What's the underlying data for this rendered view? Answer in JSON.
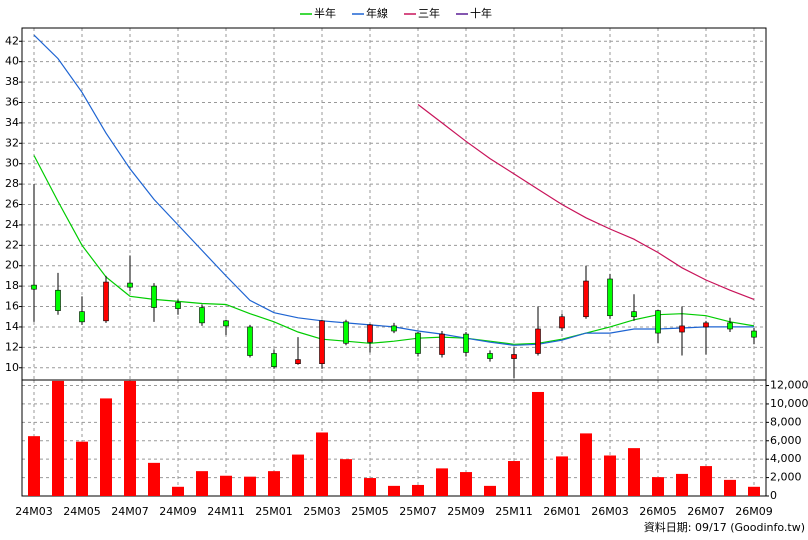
{
  "chart_data": [
    {
      "type": "candlestick",
      "open": [
        18.1,
        17.6,
        15.5,
        14.6,
        18.3,
        18.0,
        16.4,
        15.9,
        14.6,
        14.0,
        11.4,
        10.4,
        10.4,
        14.5,
        12.5,
        14.1,
        13.4,
        11.3,
        13.3,
        11.4,
        10.9,
        11.4,
        13.9,
        15.0,
        18.7,
        15.5,
        15.6,
        13.5,
        14.0,
        14.4,
        13.6
      ],
      "high": [
        28,
        19.3,
        17,
        19,
        21,
        18.3,
        16.7,
        16.2,
        14.7,
        14.2,
        11.8,
        13,
        14.7,
        14.7,
        14.3,
        14.4,
        13.5,
        13.6,
        13.5,
        11.7,
        12,
        16,
        15.3,
        20,
        19.2,
        17.2,
        15.7,
        16,
        14.6,
        14.9,
        13.9
      ],
      "low": [
        14.5,
        15.2,
        14.2,
        14.4,
        17.5,
        14.5,
        15.2,
        14.1,
        13.2,
        11.0,
        9.9,
        10.3,
        9.9,
        12.2,
        11.5,
        13.4,
        11.1,
        11.0,
        11.1,
        10.6,
        9.0,
        11.2,
        13.6,
        14.8,
        14.8,
        14.6,
        12.4,
        11.2,
        11.3,
        13.5,
        12.3
      ],
      "close": [
        17.7,
        15.6,
        14.5,
        18.4,
        17.9,
        15.9,
        15.8,
        14.4,
        14.1,
        11.2,
        10.1,
        10.8,
        14.6,
        12.4,
        14.2,
        13.6,
        11.4,
        13.3,
        11.5,
        10.9,
        11.3,
        13.8,
        15.0,
        18.5,
        15.1,
        15.0,
        13.4,
        14.1,
        14.4,
        13.8,
        13.0
      ],
      "up_color": "#ff0000",
      "down_color": "#00ff00",
      "series": [
        {
          "name": "半年",
          "color": "#00cc00",
          "values": [
            30.8,
            26.3,
            22.0,
            18.9,
            17.0,
            16.7,
            16.5,
            16.3,
            16.2,
            15.3,
            14.5,
            13.5,
            12.8,
            12.6,
            12.4,
            12.6,
            12.9,
            13.0,
            12.9,
            12.6,
            12.3,
            12.4,
            12.8,
            13.4,
            14.0,
            14.7,
            15.2,
            15.3,
            15.1,
            14.5,
            14.1
          ]
        },
        {
          "name": "年線",
          "color": "#1e64d2",
          "values": [
            42.6,
            40.3,
            37.0,
            33.0,
            29.5,
            26.5,
            24.0,
            21.5,
            19.0,
            16.6,
            15.4,
            14.9,
            14.6,
            14.4,
            14.2,
            14.0,
            13.6,
            13.3,
            12.9,
            12.5,
            12.2,
            12.3,
            12.7,
            13.4,
            13.4,
            13.8,
            13.8,
            13.9,
            14.0,
            14.0,
            14.0
          ]
        },
        {
          "name": "三年",
          "color": "#c8145a",
          "values": [
            null,
            null,
            null,
            null,
            null,
            null,
            null,
            null,
            null,
            null,
            null,
            null,
            null,
            null,
            null,
            null,
            35.8,
            34.0,
            32.2,
            30.5,
            29.0,
            27.5,
            26.0,
            24.7,
            23.6,
            22.6,
            21.3,
            19.8,
            18.6,
            17.6,
            16.7
          ]
        },
        {
          "name": "十年",
          "color": "#5a1e96",
          "values": [
            null,
            null,
            null,
            null,
            null,
            null,
            null,
            null,
            null,
            null,
            null,
            null,
            null,
            null,
            null,
            null,
            null,
            null,
            null,
            null,
            null,
            null,
            null,
            null,
            null,
            null,
            null,
            null,
            null,
            null,
            null
          ]
        }
      ],
      "ylim": [
        8.8,
        43.3
      ],
      "yticks": [
        10,
        12,
        14,
        16,
        18,
        20,
        22,
        24,
        26,
        28,
        30,
        32,
        34,
        36,
        38,
        40,
        42
      ],
      "grid": true
    },
    {
      "type": "bar",
      "categories": [
        "24M03",
        null,
        "24M05",
        null,
        "24M07",
        null,
        "24M09",
        null,
        "24M11",
        null,
        "25M01",
        null,
        "25M03",
        null,
        "25M05",
        null,
        "25M07",
        null,
        "25M09",
        null,
        "25M11",
        null,
        "26M01",
        null,
        "26M03",
        null,
        "26M05",
        null,
        "26M07",
        null,
        "26M09"
      ],
      "values": [
        6500,
        12500,
        5900,
        10600,
        12500,
        3600,
        1000,
        2700,
        2200,
        2100,
        2700,
        4500,
        6900,
        4000,
        1950,
        1100,
        1200,
        3000,
        2600,
        1100,
        3800,
        11300,
        4300,
        6800,
        4400,
        5200,
        2050,
        2400,
        3250,
        1750,
        1000
      ],
      "color": "#ff0000",
      "ylim": [
        0,
        12600
      ],
      "yticks": [
        0,
        {
          "value": 2000,
          "label": "2,000"
        },
        {
          "value": 4000,
          "label": "4,000"
        },
        {
          "value": 6000,
          "label": "6,000"
        },
        {
          "value": 8000,
          "label": "8,000"
        },
        {
          "value": 10000,
          "label": "10,000"
        },
        {
          "value": 12000,
          "label": "12,000"
        }
      ],
      "grid": true,
      "annotation": "資料日期: 09/17 (Goodinfo.tw)"
    }
  ]
}
